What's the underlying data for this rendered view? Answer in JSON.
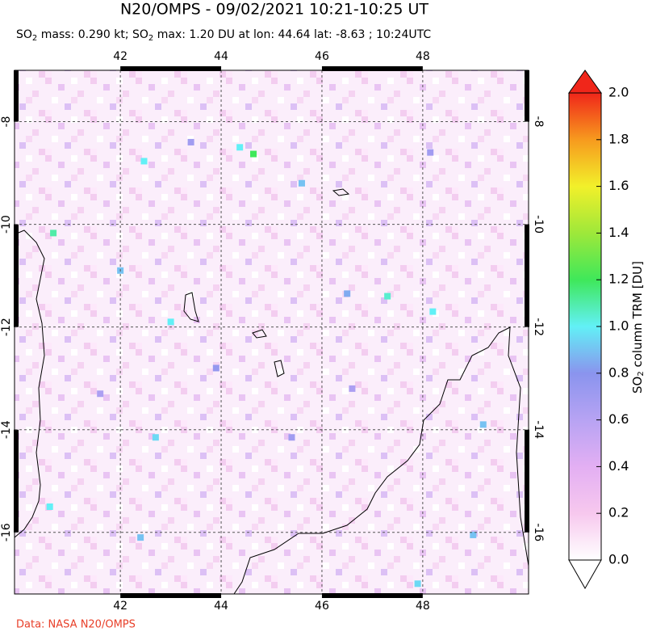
{
  "chart_data": {
    "type": "heatmap",
    "title": "N20/OMPS - 09/02/2021 10:21-10:25 UT",
    "subtitle_parts": [
      "SO",
      "2",
      " mass: 0.290 kt; SO",
      "2",
      " max: 1.20 DU at lon: 44.64 lat: -8.63 ; 10:24UTC"
    ],
    "xlim": [
      39.9,
      50.1
    ],
    "ylim": [
      -17.2,
      -7.0
    ],
    "xticks": [
      42,
      44,
      46,
      48
    ],
    "yticks": [
      -16,
      -14,
      -12,
      -10,
      -8
    ],
    "grid": true,
    "colorbar": {
      "label_parts": [
        "SO",
        "2",
        " column TRM [DU]"
      ],
      "lim": [
        0,
        2
      ],
      "colors": [
        "#ffffff",
        "#f7c8ee",
        "#e3aff3",
        "#b7a3f3",
        "#8a94ee",
        "#62f0f6",
        "#3fe85a",
        "#9ee83a",
        "#f2f02a",
        "#f79a1e",
        "#f0261a"
      ],
      "ticks": [
        {
          "value": 0,
          "label": "0.0"
        },
        {
          "value": 0.2,
          "label": "0.2"
        },
        {
          "value": 0.4,
          "label": "0.4"
        },
        {
          "value": 0.6,
          "label": "0.6"
        },
        {
          "value": 0.8,
          "label": "0.8"
        },
        {
          "value": 1.0,
          "label": "1.0"
        },
        {
          "value": 1.2,
          "label": "1.2"
        },
        {
          "value": 1.4,
          "label": "1.4"
        },
        {
          "value": 1.6,
          "label": "1.6"
        },
        {
          "value": 1.8,
          "label": "1.8"
        },
        {
          "value": 2.0,
          "label": "2.0"
        }
      ]
    },
    "pixels": {
      "lon": [
        42.47,
        44.64,
        44.37,
        45.6,
        40.67,
        42.0,
        43.0,
        47.3,
        48.2,
        46.5,
        42.7,
        40.6,
        42.4,
        47.9,
        49.2,
        49.0,
        43.4,
        41.6,
        43.9,
        45.4,
        48.15,
        46.6
      ],
      "lat": [
        -8.77,
        -8.63,
        -8.5,
        -9.2,
        -10.17,
        -10.9,
        -11.9,
        -11.4,
        -11.7,
        -11.35,
        -14.15,
        -15.5,
        -16.1,
        -17.0,
        -13.9,
        -16.05,
        -8.4,
        -13.3,
        -12.8,
        -14.15,
        -8.6,
        -13.2
      ],
      "values": [
        1.0,
        1.2,
        1.0,
        0.9,
        1.1,
        0.9,
        1.0,
        1.05,
        1.0,
        0.85,
        0.95,
        1.0,
        0.9,
        0.95,
        0.9,
        0.9,
        0.7,
        0.65,
        0.75,
        0.7,
        0.7,
        0.65
      ]
    },
    "credit": "Data: NASA N20/OMPS"
  }
}
